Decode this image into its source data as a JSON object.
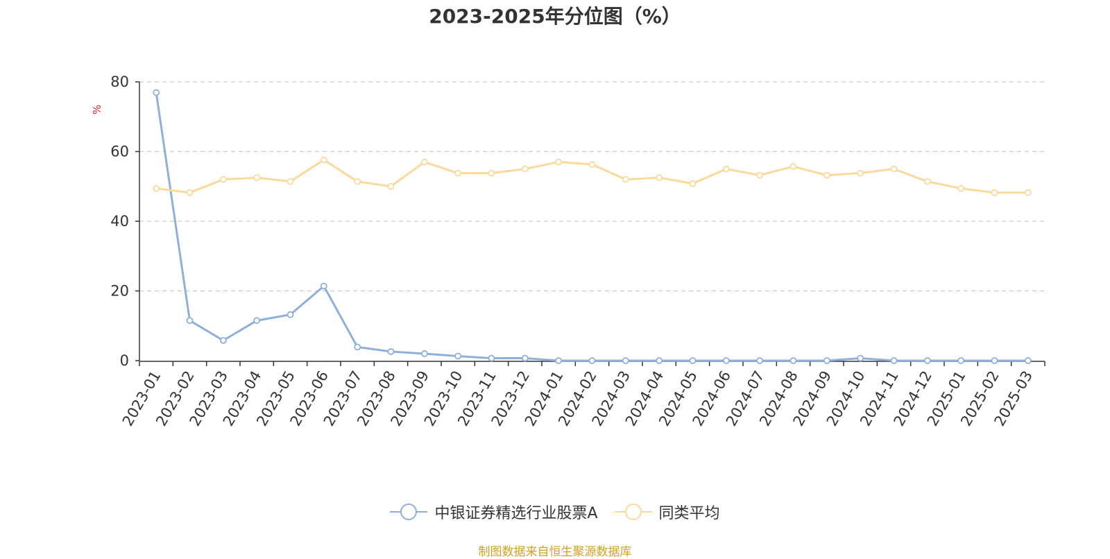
{
  "title": "2023-2025年分位图（%）",
  "source": "制图数据来自恒生聚源数据库",
  "colors": {
    "series1": "#8eaedc",
    "series2": "#fbd99a",
    "unit": "#e02020",
    "source": "#d4a020",
    "grid": "#cccccc",
    "axis": "#333333"
  },
  "chart_data": {
    "type": "line",
    "title": "2023-2025年分位图（%）",
    "ylabel": "%",
    "xlabel": "",
    "ylim": [
      0,
      80
    ],
    "yticks": [
      0,
      20,
      40,
      60,
      80
    ],
    "grid": true,
    "legend_position": "bottom",
    "categories": [
      "2023-01",
      "2023-02",
      "2023-03",
      "2023-04",
      "2023-05",
      "2023-06",
      "2023-07",
      "2023-08",
      "2023-09",
      "2023-10",
      "2023-11",
      "2023-12",
      "2024-01",
      "2024-02",
      "2024-03",
      "2024-04",
      "2024-05",
      "2024-06",
      "2024-07",
      "2024-08",
      "2024-09",
      "2024-10",
      "2024-11",
      "2024-12",
      "2025-01",
      "2025-02",
      "2025-03"
    ],
    "series": [
      {
        "name": "中银证券精选行业股票A",
        "values": [
          76.9,
          11.5,
          5.8,
          11.5,
          13.2,
          21.4,
          3.9,
          2.6,
          2.0,
          1.3,
          0.7,
          0.7,
          0.0,
          0.0,
          0.0,
          0.0,
          0.0,
          0.0,
          0.0,
          0.0,
          0.0,
          0.7,
          0.0,
          0.0,
          0.0,
          0.0,
          0.0
        ]
      },
      {
        "name": "同类平均",
        "values": [
          49.4,
          48.2,
          52.0,
          52.5,
          51.4,
          57.6,
          51.4,
          50.0,
          57.0,
          53.8,
          53.8,
          55.0,
          57.0,
          56.3,
          52.0,
          52.5,
          50.8,
          55.0,
          53.2,
          55.7,
          53.2,
          53.8,
          55.0,
          51.4,
          49.4,
          48.2,
          48.2
        ]
      }
    ]
  }
}
